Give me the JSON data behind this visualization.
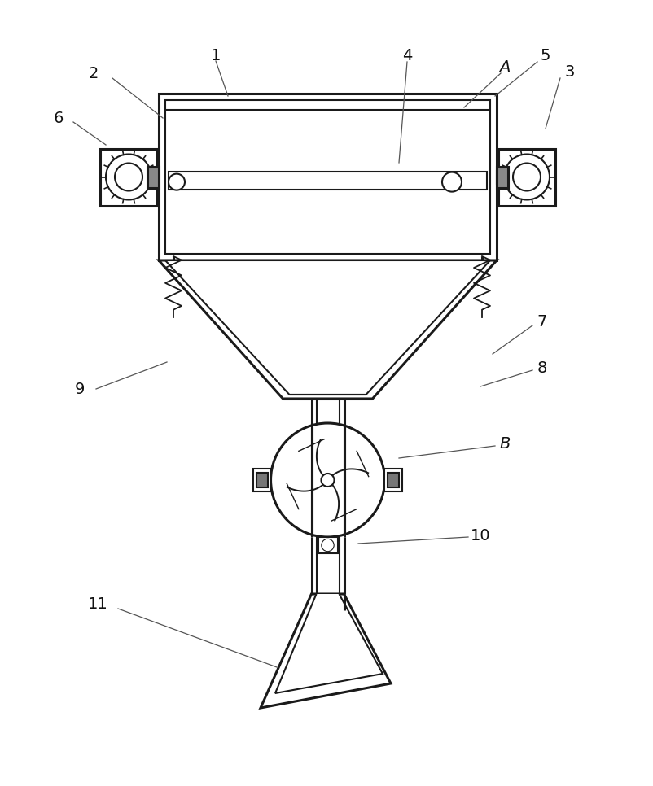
{
  "bg_color": "#ffffff",
  "line_color": "#1a1a1a",
  "lw": 1.5,
  "lw2": 2.2,
  "fig_width": 8.02,
  "fig_height": 9.66,
  "dpi": 100
}
